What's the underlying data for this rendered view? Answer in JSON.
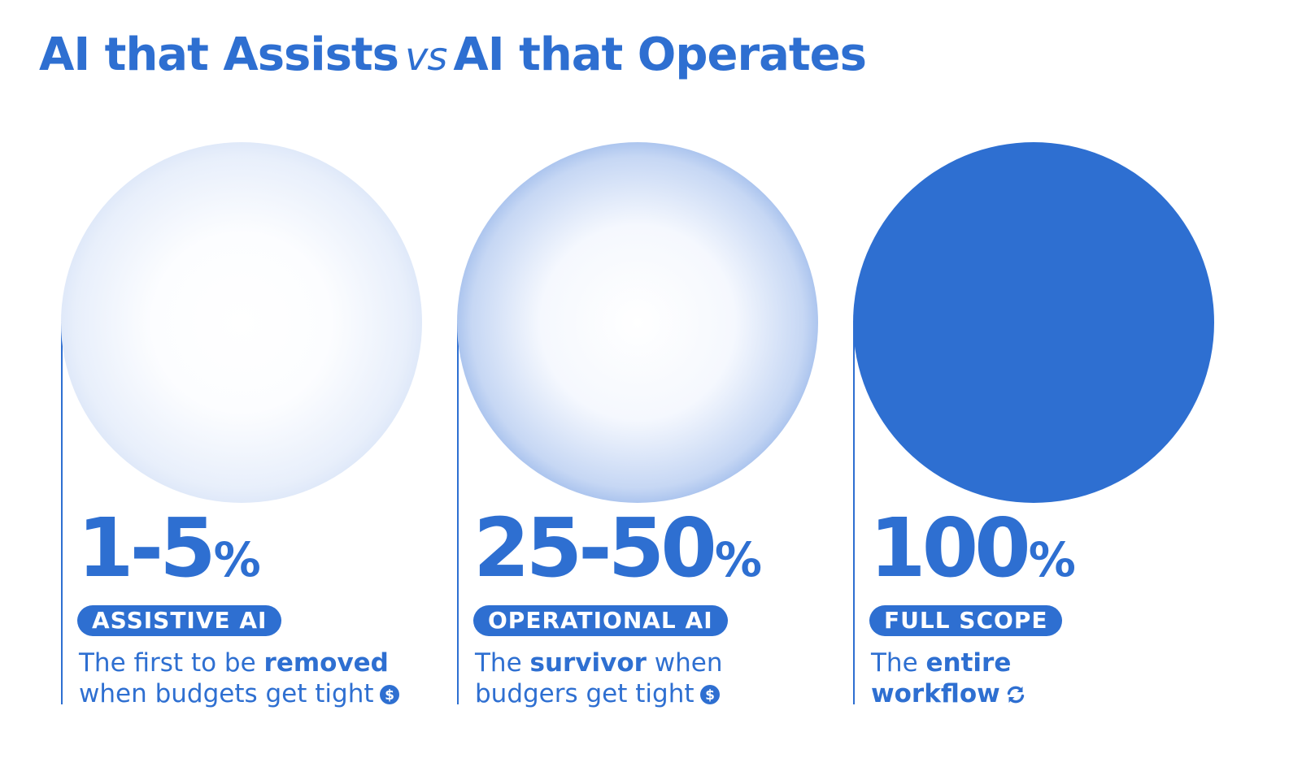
{
  "title": {
    "part1": "AI that Assists",
    "vs": "vs",
    "part2": "AI that Operates"
  },
  "columns": [
    {
      "value": "1-5",
      "unit": "%",
      "badge": "ASSISTIVE AI",
      "line1_pre": "The first to be ",
      "line1_bold": "removed",
      "line2_pre": "when budgets get tight",
      "icon": "dollar-icon"
    },
    {
      "value": "25-50",
      "unit": "%",
      "badge": "OPERATIONAL AI",
      "line1_pre": "The ",
      "line1_bold": "survivor",
      "line1_post": " when",
      "line2_pre": "budgers get tight",
      "icon": "dollar-icon"
    },
    {
      "value": "100",
      "unit": "%",
      "badge": "FULL SCOPE",
      "line1_pre": "The ",
      "line1_bold": "entire",
      "line2_bold": "workflow",
      "icon": "refresh-icon"
    }
  ],
  "colors": {
    "accent": "#2e6fd1",
    "background": "#ffffff"
  }
}
